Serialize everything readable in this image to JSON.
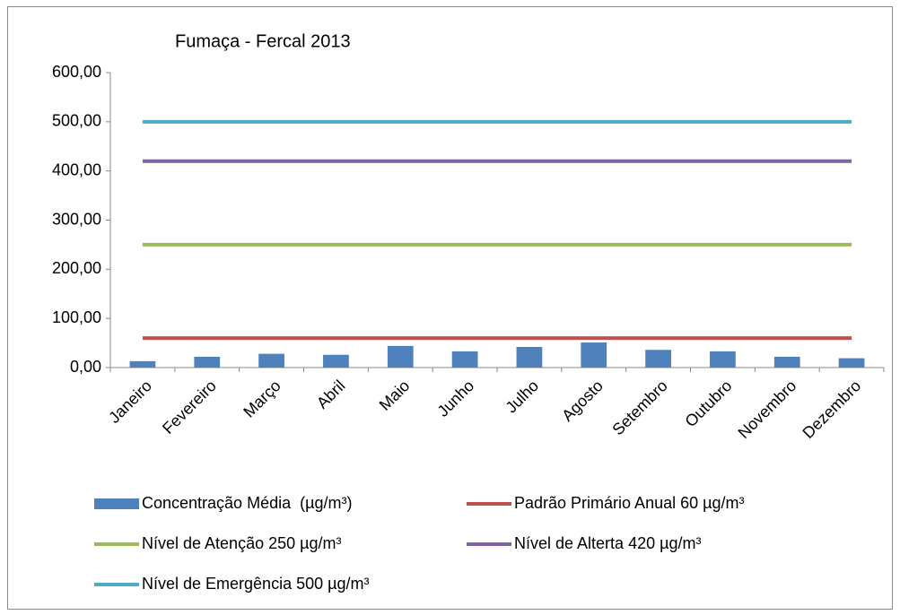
{
  "chart_data": {
    "type": "bar",
    "title": "Fumaça - Fercal 2013",
    "categories": [
      "Janeiro",
      "Fevereiro",
      "Março",
      "Abril",
      "Maio",
      "Junho",
      "Julho",
      "Agosto",
      "Setembro",
      "Outubro",
      "Novembro",
      "Dezembro"
    ],
    "series": [
      {
        "name": "Concentração Média  (µg/m³)",
        "type": "bar",
        "color": "#4f81bd",
        "values": [
          13,
          22,
          28,
          26,
          44,
          33,
          42,
          51,
          36,
          33,
          22,
          19
        ]
      },
      {
        "name": "Padrão Primário Anual 60 µg/m³",
        "type": "line",
        "color": "#c0504d",
        "values": [
          60,
          60,
          60,
          60,
          60,
          60,
          60,
          60,
          60,
          60,
          60,
          60
        ]
      },
      {
        "name": "Nível de Atenção 250 µg/m³",
        "type": "line",
        "color": "#9bbb59",
        "values": [
          250,
          250,
          250,
          250,
          250,
          250,
          250,
          250,
          250,
          250,
          250,
          250
        ]
      },
      {
        "name": "Nível de Alterta 420 µg/m³",
        "type": "line",
        "color": "#8064a2",
        "values": [
          420,
          420,
          420,
          420,
          420,
          420,
          420,
          420,
          420,
          420,
          420,
          420
        ]
      },
      {
        "name": "Nível de Emergência 500 µg/m³",
        "type": "line",
        "color": "#4bacc6",
        "values": [
          500,
          500,
          500,
          500,
          500,
          500,
          500,
          500,
          500,
          500,
          500,
          500
        ]
      }
    ],
    "ylim": [
      0,
      600
    ],
    "yticks": [
      {
        "value": 0,
        "label": "0,00"
      },
      {
        "value": 100,
        "label": "100,00"
      },
      {
        "value": 200,
        "label": "200,00"
      },
      {
        "value": 300,
        "label": "300,00"
      },
      {
        "value": 400,
        "label": "400,00"
      },
      {
        "value": 500,
        "label": "500,00"
      },
      {
        "value": 600,
        "label": "600,00"
      }
    ],
    "grid": false,
    "legend": "bottom"
  }
}
